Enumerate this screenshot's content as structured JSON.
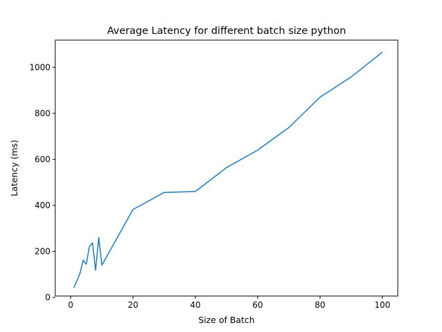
{
  "chart_data": {
    "type": "line",
    "title": "Average Latency for different batch size python",
    "xlabel": "Size of Batch",
    "ylabel": "Latency (ms)",
    "xlim": [
      -4.95,
      104.95
    ],
    "ylim": [
      6,
      1118
    ],
    "xticks": [
      0,
      20,
      40,
      60,
      80,
      100
    ],
    "yticks": [
      0,
      200,
      400,
      600,
      800,
      1000
    ],
    "grid": false,
    "line_color": "#1f77b4",
    "series": [
      {
        "x": [
          1,
          2,
          3,
          4,
          5,
          6,
          7,
          8,
          9,
          10,
          20,
          30,
          40,
          50,
          60,
          70,
          80,
          90,
          100
        ],
        "y": [
          42,
          72,
          105,
          162,
          144,
          220,
          237,
          118,
          260,
          140,
          382,
          456,
          460,
          564,
          640,
          738,
          870,
          958,
          1066
        ]
      }
    ]
  }
}
